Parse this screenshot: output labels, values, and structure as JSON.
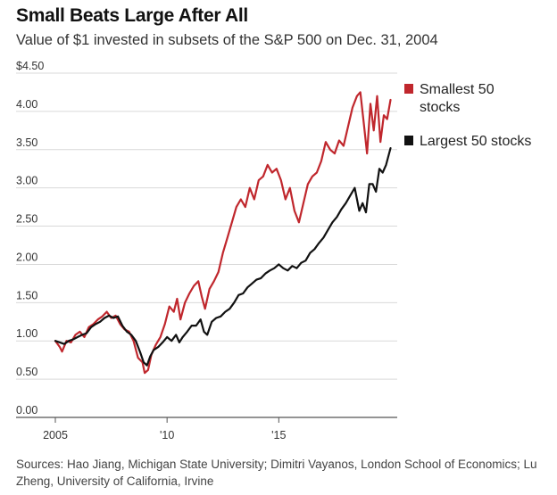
{
  "title": "Small Beats Large After All",
  "subtitle": "Value of $1 invested in subsets of the S&P 500 on Dec. 31, 2004",
  "source": "Sources: Hao Jiang, Michigan State University; Dimitri Vayanos, London School of Economics; Lu Zheng, University of California, Irvine",
  "chart_data": {
    "type": "line",
    "title": "Small Beats Large After All",
    "subtitle": "Value of $1 invested in subsets of the S&P 500 on Dec. 31, 2004",
    "xlim": [
      2005,
      2020.1
    ],
    "ylim": [
      0,
      4.5
    ],
    "y_ticks": [
      0,
      0.5,
      1.0,
      1.5,
      2.0,
      2.5,
      3.0,
      3.5,
      4.0,
      4.5
    ],
    "y_tick_labels": [
      "0.00",
      "0.50",
      "1.00",
      "1.50",
      "2.00",
      "2.50",
      "3.00",
      "3.50",
      "4.00",
      "$4.50"
    ],
    "x_ticks": [
      2005,
      2010,
      2015
    ],
    "x_tick_labels": [
      "2005",
      "'10",
      "'15"
    ],
    "grid": "horizontal",
    "legend": "right",
    "series": [
      {
        "name": "Smallest 50 stocks",
        "color": "#c0272d",
        "x": [
          2005.0,
          2005.2,
          2005.3,
          2005.5,
          2005.7,
          2005.9,
          2006.1,
          2006.3,
          2006.5,
          2006.7,
          2006.9,
          2007.1,
          2007.3,
          2007.5,
          2007.7,
          2007.9,
          2008.1,
          2008.3,
          2008.5,
          2008.7,
          2008.9,
          2009.0,
          2009.15,
          2009.3,
          2009.5,
          2009.7,
          2009.9,
          2010.1,
          2010.3,
          2010.45,
          2010.6,
          2010.8,
          2011.0,
          2011.2,
          2011.4,
          2011.55,
          2011.7,
          2011.9,
          2012.1,
          2012.3,
          2012.5,
          2012.7,
          2012.9,
          2013.1,
          2013.3,
          2013.5,
          2013.7,
          2013.9,
          2014.1,
          2014.3,
          2014.5,
          2014.7,
          2014.9,
          2015.1,
          2015.3,
          2015.5,
          2015.7,
          2015.9,
          2016.1,
          2016.3,
          2016.5,
          2016.7,
          2016.9,
          2017.1,
          2017.3,
          2017.5,
          2017.7,
          2017.9,
          2018.1,
          2018.3,
          2018.5,
          2018.65,
          2018.8,
          2018.95,
          2019.1,
          2019.25,
          2019.4,
          2019.55,
          2019.7,
          2019.85,
          2020.0
        ],
        "values": [
          1.0,
          0.92,
          0.86,
          1.0,
          0.98,
          1.08,
          1.12,
          1.05,
          1.18,
          1.22,
          1.28,
          1.32,
          1.38,
          1.3,
          1.33,
          1.22,
          1.15,
          1.12,
          1.0,
          0.78,
          0.72,
          0.58,
          0.62,
          0.82,
          0.95,
          1.05,
          1.22,
          1.45,
          1.38,
          1.55,
          1.28,
          1.5,
          1.62,
          1.72,
          1.78,
          1.58,
          1.42,
          1.68,
          1.78,
          1.9,
          2.15,
          2.35,
          2.55,
          2.75,
          2.85,
          2.75,
          3.0,
          2.85,
          3.1,
          3.15,
          3.3,
          3.2,
          3.25,
          3.1,
          2.85,
          3.0,
          2.7,
          2.55,
          2.8,
          3.05,
          3.15,
          3.2,
          3.35,
          3.6,
          3.5,
          3.45,
          3.62,
          3.55,
          3.8,
          4.05,
          4.2,
          4.25,
          3.85,
          3.45,
          4.1,
          3.75,
          4.2,
          3.6,
          3.95,
          3.9,
          4.15
        ]
      },
      {
        "name": "Largest 50 stocks",
        "color": "#111111",
        "x": [
          2005.0,
          2005.2,
          2005.4,
          2005.6,
          2005.8,
          2006.0,
          2006.2,
          2006.4,
          2006.6,
          2006.8,
          2007.0,
          2007.2,
          2007.4,
          2007.6,
          2007.8,
          2008.0,
          2008.2,
          2008.4,
          2008.6,
          2008.8,
          2008.95,
          2009.1,
          2009.25,
          2009.4,
          2009.6,
          2009.8,
          2010.0,
          2010.2,
          2010.4,
          2010.55,
          2010.7,
          2010.9,
          2011.1,
          2011.3,
          2011.5,
          2011.65,
          2011.8,
          2012.0,
          2012.2,
          2012.4,
          2012.6,
          2012.8,
          2013.0,
          2013.2,
          2013.4,
          2013.6,
          2013.8,
          2014.0,
          2014.2,
          2014.4,
          2014.6,
          2014.8,
          2015.0,
          2015.2,
          2015.4,
          2015.6,
          2015.8,
          2016.0,
          2016.2,
          2016.4,
          2016.6,
          2016.8,
          2017.0,
          2017.2,
          2017.4,
          2017.6,
          2017.8,
          2018.0,
          2018.2,
          2018.4,
          2018.6,
          2018.75,
          2018.9,
          2019.05,
          2019.2,
          2019.35,
          2019.5,
          2019.65,
          2019.8,
          2020.0
        ],
        "values": [
          1.0,
          0.98,
          0.96,
          1.0,
          1.02,
          1.05,
          1.08,
          1.1,
          1.18,
          1.22,
          1.25,
          1.3,
          1.33,
          1.3,
          1.32,
          1.2,
          1.12,
          1.08,
          1.0,
          0.85,
          0.72,
          0.68,
          0.8,
          0.88,
          0.92,
          0.98,
          1.05,
          1.0,
          1.08,
          0.98,
          1.05,
          1.12,
          1.2,
          1.2,
          1.28,
          1.12,
          1.08,
          1.25,
          1.3,
          1.32,
          1.38,
          1.42,
          1.5,
          1.6,
          1.62,
          1.7,
          1.75,
          1.8,
          1.82,
          1.88,
          1.92,
          1.95,
          2.0,
          1.95,
          1.92,
          1.98,
          1.95,
          2.02,
          2.05,
          2.15,
          2.2,
          2.28,
          2.35,
          2.45,
          2.55,
          2.62,
          2.72,
          2.8,
          2.9,
          3.0,
          2.7,
          2.8,
          2.68,
          3.05,
          3.05,
          2.95,
          3.25,
          3.2,
          3.3,
          3.52
        ]
      }
    ]
  }
}
